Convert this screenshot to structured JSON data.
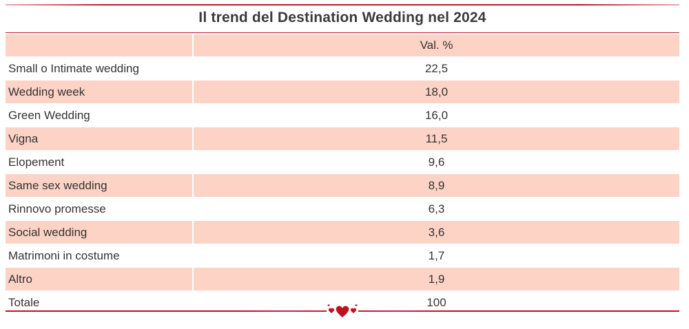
{
  "title": "Il trend del Destination Wedding nel 2024",
  "colors": {
    "accent_red": "#c01020",
    "row_shade": "#fdd3c5",
    "text": "#333333"
  },
  "icons": {
    "footer_ornament": "hearts-icon"
  },
  "chart_data": {
    "type": "table",
    "title": "Il trend del Destination Wedding nel 2024",
    "columns": [
      "",
      "Val. %"
    ],
    "rows": [
      {
        "label": "Small o Intimate wedding",
        "value": "22,5"
      },
      {
        "label": "Wedding week",
        "value": "18,0"
      },
      {
        "label": "Green Wedding",
        "value": "16,0"
      },
      {
        "label": "Vigna",
        "value": "11,5"
      },
      {
        "label": "Elopement",
        "value": "9,6"
      },
      {
        "label": "Same sex wedding",
        "value": "8,9"
      },
      {
        "label": "Rinnovo promesse",
        "value": "6,3"
      },
      {
        "label": "Social wedding",
        "value": "3,6"
      },
      {
        "label": "Matrimoni in costume",
        "value": "1,7"
      },
      {
        "label": "Altro",
        "value": "1,9"
      },
      {
        "label": "Totale",
        "value": "100"
      }
    ]
  }
}
